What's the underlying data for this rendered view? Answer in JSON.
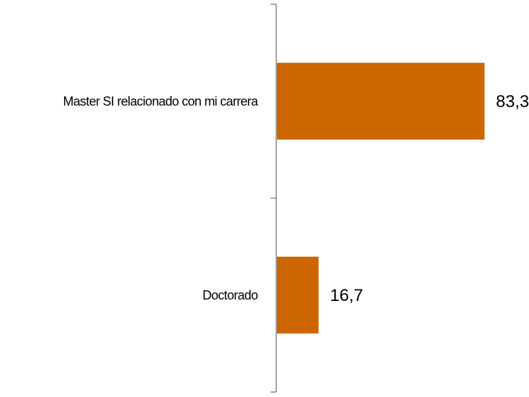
{
  "chart_data": {
    "type": "bar",
    "orientation": "horizontal",
    "categories": [
      "Master SI relacionado con mi carrera",
      "Doctorado"
    ],
    "values": [
      83.3,
      16.7
    ],
    "value_labels": [
      "83,3",
      "16,7"
    ],
    "title": "",
    "xlabel": "",
    "ylabel": "",
    "xlim": [
      0,
      100
    ],
    "grid": false,
    "legend": "none",
    "bar_color": "#CC6600",
    "axis_color": "#868686"
  }
}
